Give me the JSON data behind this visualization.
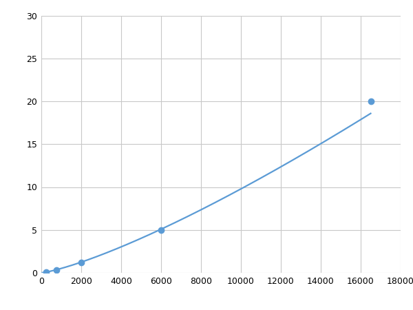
{
  "x_points": [
    0,
    250,
    750,
    2000,
    6000,
    16500
  ],
  "y_points": [
    0.0,
    0.1,
    0.3,
    1.2,
    5.0,
    20.0
  ],
  "line_color": "#5B9BD5",
  "marker_x": [
    250,
    750,
    2000,
    6000,
    16500
  ],
  "marker_y": [
    0.1,
    0.3,
    1.2,
    5.0,
    20.0
  ],
  "marker_color": "#5B9BD5",
  "marker_size": 6,
  "line_width": 1.6,
  "xlim": [
    0,
    18000
  ],
  "ylim": [
    0,
    30
  ],
  "xticks": [
    0,
    2000,
    4000,
    6000,
    8000,
    10000,
    12000,
    14000,
    16000,
    18000
  ],
  "yticks": [
    0,
    5,
    10,
    15,
    20,
    25,
    30
  ],
  "grid_color": "#C8C8C8",
  "background_color": "#FFFFFF",
  "figsize": [
    6.0,
    4.5
  ],
  "dpi": 100
}
